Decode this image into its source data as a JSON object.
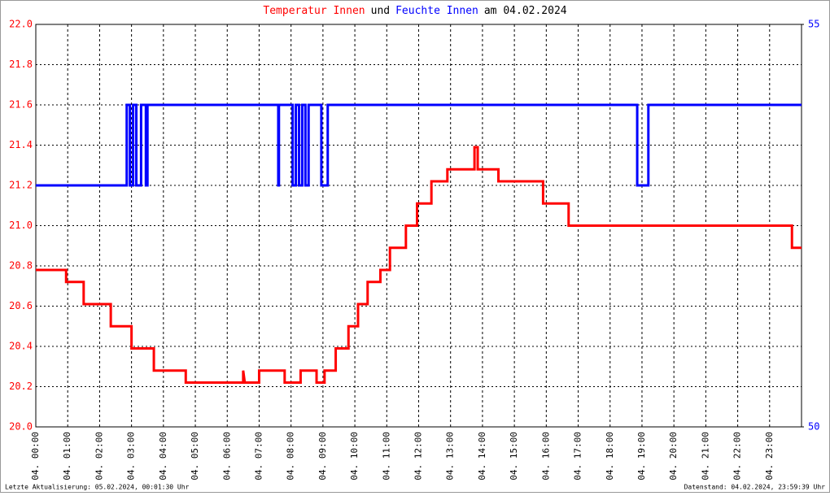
{
  "chart_data": {
    "type": "line",
    "title_parts": [
      {
        "text": "Temperatur Innen",
        "color": "#ff0000"
      },
      {
        "text": "und",
        "color": "#000000"
      },
      {
        "text": "Feuchte Innen",
        "color": "#0000ff"
      },
      {
        "text": "am 04.02.2024",
        "color": "#000000"
      }
    ],
    "footer_left": "Letzte Aktualisierung: 05.02.2024, 00:01:30 Uhr",
    "footer_right": "Datenstand: 04.02.2024, 23:59:39 Uhr",
    "xlim": [
      0,
      24
    ],
    "xticks": [
      {
        "value": 0,
        "label": "04. 00:00"
      },
      {
        "value": 1,
        "label": "04. 01:00"
      },
      {
        "value": 2,
        "label": "04. 02:00"
      },
      {
        "value": 3,
        "label": "04. 03:00"
      },
      {
        "value": 4,
        "label": "04. 04:00"
      },
      {
        "value": 5,
        "label": "04. 05:00"
      },
      {
        "value": 6,
        "label": "04. 06:00"
      },
      {
        "value": 7,
        "label": "04. 07:00"
      },
      {
        "value": 8,
        "label": "04. 08:00"
      },
      {
        "value": 9,
        "label": "04. 09:00"
      },
      {
        "value": 10,
        "label": "04. 10:00"
      },
      {
        "value": 11,
        "label": "04. 11:00"
      },
      {
        "value": 12,
        "label": "04. 12:00"
      },
      {
        "value": 13,
        "label": "04. 13:00"
      },
      {
        "value": 14,
        "label": "04. 14:00"
      },
      {
        "value": 15,
        "label": "04. 15:00"
      },
      {
        "value": 16,
        "label": "04. 16:00"
      },
      {
        "value": 17,
        "label": "04. 17:00"
      },
      {
        "value": 18,
        "label": "04. 18:00"
      },
      {
        "value": 19,
        "label": "04. 19:00"
      },
      {
        "value": 20,
        "label": "04. 20:00"
      },
      {
        "value": 21,
        "label": "04. 21:00"
      },
      {
        "value": 22,
        "label": "04. 22:00"
      },
      {
        "value": 23,
        "label": "04. 23:00"
      }
    ],
    "ylim": [
      20,
      22
    ],
    "yticks": [
      {
        "value": 20,
        "label": "20.0"
      },
      20.2,
      20.4,
      20.6,
      20.8,
      {
        "value": 21,
        "label": "21.0"
      },
      21.2,
      21.4,
      21.6,
      21.8,
      {
        "value": 22,
        "label": "22.0"
      }
    ],
    "y2lim": [
      50,
      55
    ],
    "y2ticks": [
      50,
      55
    ],
    "grid": true,
    "series": [
      {
        "name": "Temperatur Innen",
        "color": "#ff0000",
        "x": [
          0,
          0.95,
          0.95,
          1.5,
          1.5,
          2.35,
          2.35,
          3.0,
          3.0,
          3.7,
          3.7,
          4.7,
          4.7,
          6.5,
          6.5,
          6.55,
          7.0,
          7.0,
          7.8,
          7.8,
          8.3,
          8.3,
          8.8,
          8.8,
          9.05,
          9.05,
          9.4,
          9.4,
          9.8,
          9.8,
          10.1,
          10.1,
          10.4,
          10.4,
          10.8,
          10.8,
          11.1,
          11.1,
          11.6,
          11.6,
          11.95,
          11.95,
          12.4,
          12.4,
          12.9,
          12.9,
          13.75,
          13.75,
          13.85,
          13.85,
          14.5,
          14.5,
          15.9,
          15.9,
          16.7,
          16.7,
          23.7,
          23.7,
          24
        ],
        "values": [
          20.78,
          20.78,
          20.72,
          20.72,
          20.61,
          20.61,
          20.5,
          20.5,
          20.39,
          20.39,
          20.28,
          20.28,
          20.22,
          20.22,
          20.28,
          20.22,
          20.22,
          20.28,
          20.28,
          20.22,
          20.22,
          20.28,
          20.28,
          20.22,
          20.22,
          20.28,
          20.28,
          20.39,
          20.39,
          20.5,
          20.5,
          20.61,
          20.61,
          20.72,
          20.72,
          20.78,
          20.78,
          20.89,
          20.89,
          21.0,
          21.0,
          21.11,
          21.11,
          21.22,
          21.22,
          21.28,
          21.28,
          21.39,
          21.39,
          21.28,
          21.28,
          21.22,
          21.22,
          21.11,
          21.11,
          21.0,
          21.0,
          20.89,
          20.89
        ]
      },
      {
        "name": "Feuchte Innen",
        "color": "#0000ff",
        "axis": "y2",
        "x": [
          0,
          2.85,
          2.85,
          2.95,
          2.95,
          3.05,
          3.05,
          3.15,
          3.15,
          3.3,
          3.3,
          3.45,
          3.45,
          3.5,
          3.5,
          7.6,
          7.6,
          7.62,
          7.62,
          8.05,
          8.05,
          8.15,
          8.15,
          8.25,
          8.25,
          8.35,
          8.35,
          8.45,
          8.45,
          8.55,
          8.55,
          8.95,
          8.95,
          9.15,
          9.15,
          18.85,
          18.85,
          19.2,
          19.2,
          24
        ],
        "values": [
          53,
          53,
          54,
          54,
          53,
          53,
          54,
          54,
          53,
          53,
          54,
          54,
          53,
          53,
          54,
          54,
          53,
          53,
          54,
          54,
          53,
          53,
          54,
          54,
          53,
          53,
          54,
          54,
          53,
          53,
          54,
          54,
          53,
          53,
          54,
          54,
          53,
          53,
          54,
          54
        ]
      }
    ]
  }
}
